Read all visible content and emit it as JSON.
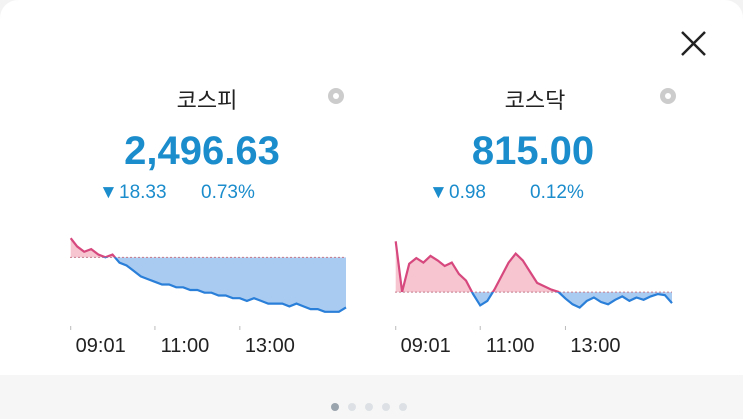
{
  "panels": [
    {
      "name": "코스피",
      "value": "2,496.63",
      "change": "18.33",
      "percent": "0.73%"
    },
    {
      "name": "코스닥",
      "value": "815.00",
      "change": "0.98",
      "percent": "0.12%"
    }
  ],
  "chart_data": [
    {
      "type": "line",
      "up_color": "#d6487e",
      "down_color": "#2a7fd8",
      "up_fill": "#f6c5cf",
      "down_fill": "#a9cbf2",
      "baseline": 2514.96,
      "x": [
        "09:01",
        "09:10",
        "09:20",
        "09:30",
        "09:40",
        "09:50",
        "10:00",
        "10:10",
        "10:20",
        "10:30",
        "10:40",
        "10:50",
        "11:00",
        "11:10",
        "11:20",
        "11:30",
        "11:40",
        "11:50",
        "12:00",
        "12:10",
        "12:20",
        "12:30",
        "12:40",
        "12:50",
        "13:00",
        "13:10",
        "13:20",
        "13:30",
        "13:40",
        "13:50",
        "14:00",
        "14:10",
        "14:20",
        "14:30",
        "14:40",
        "14:50",
        "15:00",
        "15:10",
        "15:20",
        "15:30"
      ],
      "values": [
        2522,
        2519,
        2517,
        2518,
        2516,
        2515,
        2516,
        2513,
        2512,
        2510,
        2508,
        2507,
        2506,
        2505,
        2505,
        2504,
        2504,
        2503,
        2503,
        2502,
        2502,
        2501,
        2501,
        2500,
        2500,
        2499,
        2500,
        2499,
        2498,
        2498,
        2498,
        2497,
        2498,
        2497,
        2496,
        2496,
        2495,
        2495,
        2495,
        2496.63
      ],
      "xlim": [
        "09:00",
        "15:30"
      ],
      "xticks": [
        "09:01",
        "11:00",
        "13:00"
      ],
      "ylim": [
        2492,
        2525
      ]
    },
    {
      "type": "line",
      "up_color": "#d6487e",
      "down_color": "#2a7fd8",
      "up_fill": "#f6c5cf",
      "down_fill": "#a9cbf2",
      "baseline": 815.98,
      "x": [
        "09:01",
        "09:10",
        "09:20",
        "09:30",
        "09:40",
        "09:50",
        "10:00",
        "10:10",
        "10:20",
        "10:30",
        "10:40",
        "10:50",
        "11:00",
        "11:10",
        "11:20",
        "11:30",
        "11:40",
        "11:50",
        "12:00",
        "12:10",
        "12:20",
        "12:30",
        "12:40",
        "12:50",
        "13:00",
        "13:10",
        "13:20",
        "13:30",
        "13:40",
        "13:50",
        "14:00",
        "14:10",
        "14:20",
        "14:30",
        "14:40",
        "14:50",
        "15:00",
        "15:10",
        "15:20",
        "15:30"
      ],
      "values": [
        820.5,
        816,
        818.5,
        819,
        818.6,
        819.2,
        818.8,
        818.3,
        818.6,
        817.6,
        817,
        815.8,
        814.8,
        815.2,
        816.2,
        817.4,
        818.6,
        819.4,
        818.8,
        817.8,
        816.8,
        816.5,
        816.2,
        816,
        815.4,
        814.9,
        814.6,
        815.2,
        815.5,
        815.1,
        814.9,
        815.3,
        815.6,
        815.2,
        815.5,
        815.3,
        815.6,
        815.8,
        815.7,
        815
      ],
      "xlim": [
        "09:00",
        "15:30"
      ],
      "xticks": [
        "09:01",
        "11:00",
        "13:00"
      ],
      "ylim": [
        813.5,
        821.5
      ]
    }
  ]
}
